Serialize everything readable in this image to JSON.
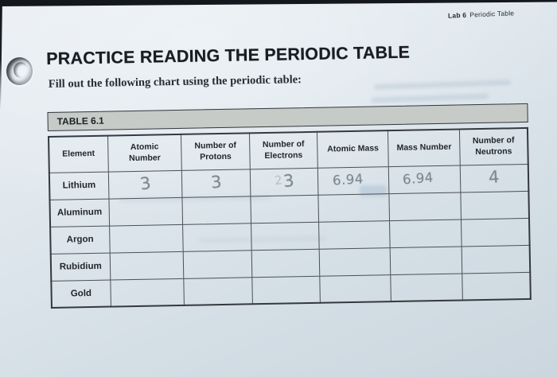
{
  "page": {
    "lab_header": {
      "label": "Lab 6",
      "title": "Periodic Table"
    },
    "title": "PRACTICE READING THE PERIODIC TABLE",
    "instruction": "Fill out the following chart using the periodic table:"
  },
  "table": {
    "caption": "TABLE 6.1",
    "columns": [
      "Element",
      "Atomic\nNumber",
      "Number of\nProtons",
      "Number of\nElectrons",
      "Atomic Mass",
      "Mass Number",
      "Number of\nNeutrons"
    ],
    "rows": [
      {
        "element": "Lithium",
        "values": [
          "3",
          "3",
          "3",
          "6.94",
          "6.94",
          "4"
        ],
        "electrons_faint_mark": "2"
      },
      {
        "element": "Aluminum",
        "values": [
          "",
          "",
          "",
          "",
          "",
          ""
        ]
      },
      {
        "element": "Argon",
        "values": [
          "",
          "",
          "",
          "",
          "",
          ""
        ]
      },
      {
        "element": "Rubidium",
        "values": [
          "",
          "",
          "",
          "",
          "",
          ""
        ]
      },
      {
        "element": "Gold",
        "values": [
          "",
          "",
          "",
          "",
          "",
          ""
        ]
      }
    ]
  },
  "colors": {
    "paper": "#dde5eb",
    "caption_bar_bg": "#c6cbc7",
    "table_border": "#34393f",
    "ink": "#1e2227",
    "pencil": "#7f8791",
    "page_edge": "#14181d"
  }
}
